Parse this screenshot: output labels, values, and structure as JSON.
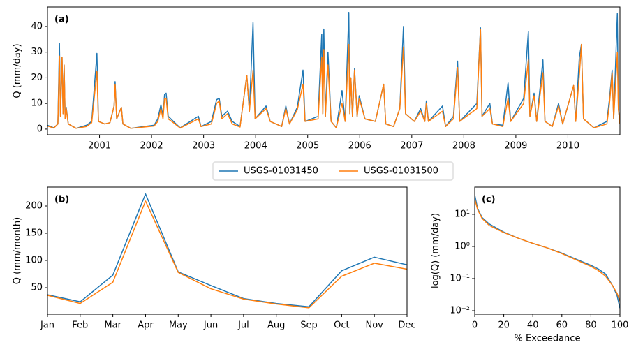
{
  "chart_data": [
    {
      "type": "line",
      "annotation": "(a)",
      "y_label": "Q (mm/day)",
      "legend": "lower center",
      "xlim": [
        2000.0,
        2011.0
      ],
      "xticks": [
        2001,
        2002,
        2003,
        2004,
        2005,
        2006,
        2007,
        2008,
        2009,
        2010
      ],
      "ylim": [
        -2.2,
        47.6
      ],
      "yticks": [
        0,
        10,
        20,
        30,
        40
      ],
      "x": [
        2000.0,
        2000.12,
        2000.2,
        2000.23,
        2000.25,
        2000.28,
        2000.3,
        2000.32,
        2000.34,
        2000.36,
        2000.4,
        2000.55,
        2000.75,
        2000.85,
        2000.95,
        2000.98,
        2001.1,
        2001.2,
        2001.28,
        2001.3,
        2001.33,
        2001.42,
        2001.45,
        2001.6,
        2001.85,
        2002.05,
        2002.12,
        2002.18,
        2002.22,
        2002.25,
        2002.28,
        2002.32,
        2002.42,
        2002.55,
        2002.9,
        2002.95,
        2003.15,
        2003.25,
        2003.3,
        2003.35,
        2003.46,
        2003.55,
        2003.7,
        2003.83,
        2003.88,
        2003.95,
        2003.99,
        2004.2,
        2004.28,
        2004.5,
        2004.58,
        2004.65,
        2004.8,
        2004.91,
        2004.95,
        2005.2,
        2005.27,
        2005.29,
        2005.31,
        2005.34,
        2005.39,
        2005.45,
        2005.55,
        2005.66,
        2005.72,
        2005.79,
        2005.81,
        2005.83,
        2005.86,
        2005.9,
        2005.95,
        2005.99,
        2006.1,
        2006.3,
        2006.46,
        2006.5,
        2006.65,
        2006.77,
        2006.84,
        2006.88,
        2007.05,
        2007.17,
        2007.25,
        2007.28,
        2007.32,
        2007.59,
        2007.65,
        2007.8,
        2007.88,
        2007.92,
        2008.25,
        2008.32,
        2008.35,
        2008.5,
        2008.55,
        2008.75,
        2008.85,
        2008.9,
        2009.15,
        2009.24,
        2009.27,
        2009.35,
        2009.4,
        2009.52,
        2009.56,
        2009.7,
        2009.82,
        2009.9,
        2010.11,
        2010.15,
        2010.22,
        2010.26,
        2010.3,
        2010.5,
        2010.75,
        2010.8,
        2010.85,
        2010.88,
        2010.95,
        2010.97,
        2011.0
      ],
      "series": [
        {
          "name": "USGS-01031450",
          "color": "#1f77b4",
          "values": [
            1.5,
            0.5,
            2,
            33.5,
            5,
            28,
            6,
            25,
            4,
            8.5,
            2,
            0.3,
            1.5,
            3,
            29.5,
            3,
            2,
            2.5,
            9,
            18.5,
            4,
            8.5,
            2,
            0.3,
            1,
            1.5,
            4,
            9.5,
            5,
            13.5,
            14,
            5,
            3,
            0.5,
            5,
            1,
            3,
            11.5,
            12,
            5,
            7,
            3,
            1,
            21,
            7,
            41.5,
            4,
            9,
            3,
            1,
            9,
            2,
            8.5,
            23,
            3,
            5,
            37,
            6,
            39,
            5,
            30,
            3,
            0.5,
            15,
            3,
            45.5,
            6,
            20,
            5,
            23.5,
            5,
            13,
            4,
            3,
            17.5,
            2,
            1,
            8,
            40,
            6,
            3,
            8,
            3,
            11,
            3,
            9,
            1,
            5,
            26.5,
            3,
            10,
            39.5,
            5,
            10,
            2,
            1.5,
            18,
            3,
            12,
            38,
            5,
            14,
            3,
            27,
            3,
            1,
            10,
            2,
            17,
            3,
            28,
            33,
            4,
            0.5,
            3,
            12,
            23,
            4,
            45,
            8,
            2
          ]
        },
        {
          "name": "USGS-01031500",
          "color": "#ff7f0e",
          "values": [
            1.2,
            0.4,
            2,
            28.5,
            5,
            28,
            6,
            25,
            4,
            8,
            2,
            0.3,
            1,
            2.5,
            22.5,
            3,
            2,
            2.5,
            9,
            17.5,
            4,
            8.5,
            2,
            0.3,
            0.8,
            1.2,
            3,
            8,
            4,
            12,
            12,
            4,
            2.5,
            0.4,
            4,
            1,
            2,
            10,
            11,
            4,
            6,
            2,
            0.8,
            21,
            7,
            23,
            4,
            8,
            3,
            1,
            8,
            2,
            7.5,
            17.5,
            3,
            4,
            28,
            6,
            31,
            5,
            25,
            3,
            0.5,
            10,
            3,
            33,
            6,
            20,
            5,
            23,
            5,
            12,
            4,
            3,
            17.5,
            2,
            1,
            8,
            32,
            6,
            3,
            7,
            3,
            10,
            3,
            7,
            1,
            4,
            24,
            3,
            8,
            39,
            5,
            8,
            2,
            1,
            12,
            3,
            10,
            27,
            5,
            13,
            3,
            22,
            3,
            1,
            9,
            2,
            17,
            3,
            21,
            33,
            4,
            0.5,
            2,
            10,
            22,
            4,
            30,
            8,
            2
          ]
        }
      ]
    },
    {
      "type": "line",
      "annotation": "(b)",
      "y_label": "Q (mm/month)",
      "categories": [
        "Jan",
        "Feb",
        "Mar",
        "Apr",
        "May",
        "Jun",
        "Jul",
        "Aug",
        "Sep",
        "Oct",
        "Nov",
        "Dec"
      ],
      "ylim": [
        1.3,
        234.6
      ],
      "yticks": [
        50,
        100,
        150,
        200
      ],
      "series": [
        {
          "name": "USGS-01031450",
          "color": "#1f77b4",
          "values": [
            37,
            24,
            73,
            222,
            79,
            54,
            30,
            21,
            15,
            81,
            106,
            92
          ]
        },
        {
          "name": "USGS-01031500",
          "color": "#ff7f0e",
          "values": [
            36,
            21,
            60,
            209,
            78,
            48,
            29,
            20,
            13,
            71,
            95,
            84
          ]
        }
      ]
    },
    {
      "type": "line",
      "annotation": "(c)",
      "y_label": "log(Q) (mm/day)",
      "x_label": "% Exceedance",
      "ylog": true,
      "xlim": [
        0,
        100
      ],
      "xticks": [
        0,
        20,
        40,
        60,
        80,
        100
      ],
      "ylim": [
        0.0078,
        70
      ],
      "yticks": [
        {
          "value": 0.01,
          "label": "10⁻²"
        },
        {
          "value": 0.1,
          "label": "10⁻¹"
        },
        {
          "value": 1,
          "label": "10⁰"
        },
        {
          "value": 10,
          "label": "10¹"
        }
      ],
      "x": [
        0,
        2,
        5,
        10,
        20,
        30,
        40,
        50,
        60,
        70,
        80,
        85,
        90,
        95,
        98,
        100
      ],
      "series": [
        {
          "name": "USGS-01031450",
          "color": "#1f77b4",
          "values": [
            40,
            15,
            8,
            5,
            2.8,
            1.8,
            1.25,
            0.9,
            0.62,
            0.4,
            0.26,
            0.2,
            0.14,
            0.06,
            0.03,
            0.012
          ]
        },
        {
          "name": "USGS-01031500",
          "color": "#ff7f0e",
          "values": [
            30,
            14,
            7.5,
            4.5,
            2.7,
            1.8,
            1.25,
            0.9,
            0.6,
            0.38,
            0.24,
            0.18,
            0.12,
            0.06,
            0.035,
            0.02
          ]
        }
      ]
    }
  ]
}
